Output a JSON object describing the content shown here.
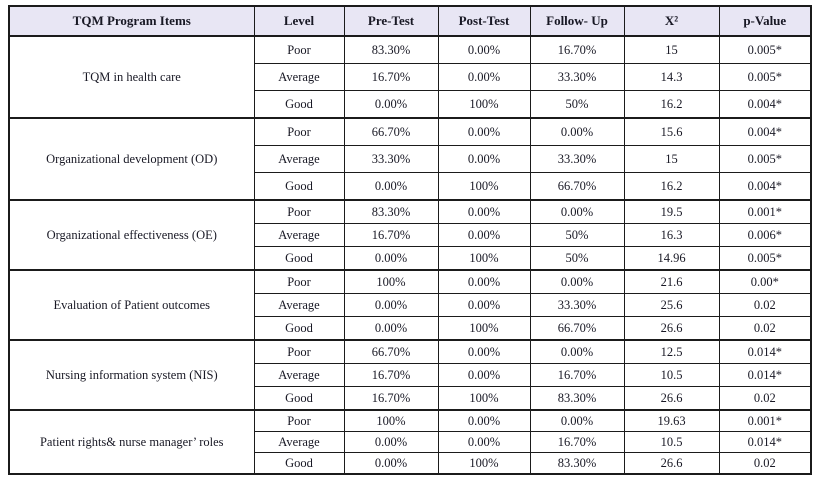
{
  "table": {
    "columns": [
      "TQM Program Items",
      "Level",
      "Pre-Test",
      "Post-Test",
      "Follow- Up",
      "X²",
      "p-Value"
    ],
    "groups": [
      {
        "item": "TQM in health care",
        "rows": [
          {
            "level": "Poor",
            "pre": "83.30%",
            "post": "0.00%",
            "follow": "16.70%",
            "x2": "15",
            "p": "0.005*"
          },
          {
            "level": "Average",
            "pre": "16.70%",
            "post": "0.00%",
            "follow": "33.30%",
            "x2": "14.3",
            "p": "0.005*"
          },
          {
            "level": "Good",
            "pre": "0.00%",
            "post": "100%",
            "follow": "50%",
            "x2": "16.2",
            "p": "0.004*"
          }
        ]
      },
      {
        "item": "Organizational development (OD)",
        "rows": [
          {
            "level": "Poor",
            "pre": "66.70%",
            "post": "0.00%",
            "follow": "0.00%",
            "x2": "15.6",
            "p": "0.004*"
          },
          {
            "level": "Average",
            "pre": "33.30%",
            "post": "0.00%",
            "follow": "33.30%",
            "x2": "15",
            "p": "0.005*"
          },
          {
            "level": "Good",
            "pre": "0.00%",
            "post": "100%",
            "follow": "66.70%",
            "x2": "16.2",
            "p": "0.004*"
          }
        ]
      },
      {
        "item": "Organizational effectiveness (OE)",
        "rows": [
          {
            "level": "Poor",
            "pre": "83.30%",
            "post": "0.00%",
            "follow": "0.00%",
            "x2": "19.5",
            "p": "0.001*"
          },
          {
            "level": "Average",
            "pre": "16.70%",
            "post": "0.00%",
            "follow": "50%",
            "x2": "16.3",
            "p": "0.006*"
          },
          {
            "level": "Good",
            "pre": "0.00%",
            "post": "100%",
            "follow": "50%",
            "x2": "14.96",
            "p": "0.005*"
          }
        ]
      },
      {
        "item": "Evaluation of Patient outcomes",
        "rows": [
          {
            "level": "Poor",
            "pre": "100%",
            "post": "0.00%",
            "follow": "0.00%",
            "x2": "21.6",
            "p": "0.00*"
          },
          {
            "level": "Average",
            "pre": "0.00%",
            "post": "0.00%",
            "follow": "33.30%",
            "x2": "25.6",
            "p": "0.02"
          },
          {
            "level": "Good",
            "pre": "0.00%",
            "post": "100%",
            "follow": "66.70%",
            "x2": "26.6",
            "p": "0.02"
          }
        ]
      },
      {
        "item": "Nursing information system (NIS)",
        "rows": [
          {
            "level": "Poor",
            "pre": "66.70%",
            "post": "0.00%",
            "follow": "0.00%",
            "x2": "12.5",
            "p": "0.014*"
          },
          {
            "level": "Average",
            "pre": "16.70%",
            "post": "0.00%",
            "follow": "16.70%",
            "x2": "10.5",
            "p": "0.014*"
          },
          {
            "level": "Good",
            "pre": "16.70%",
            "post": "100%",
            "follow": "83.30%",
            "x2": "26.6",
            "p": "0.02"
          }
        ]
      },
      {
        "item": "Patient rights& nurse manager’ roles",
        "rows": [
          {
            "level": "Poor",
            "pre": "100%",
            "post": "0.00%",
            "follow": "0.00%",
            "x2": "19.63",
            "p": "0.001*"
          },
          {
            "level": "Average",
            "pre": "0.00%",
            "post": "0.00%",
            "follow": "16.70%",
            "x2": "10.5",
            "p": "0.014*"
          },
          {
            "level": "Good",
            "pre": "0.00%",
            "post": "100%",
            "follow": "83.30%",
            "x2": "26.6",
            "p": "0.02"
          }
        ]
      }
    ],
    "colors": {
      "header_bg": "#e8e6f4",
      "border": "#1b1b1b",
      "text": "#181824",
      "body_bg": "#ffffff"
    }
  }
}
